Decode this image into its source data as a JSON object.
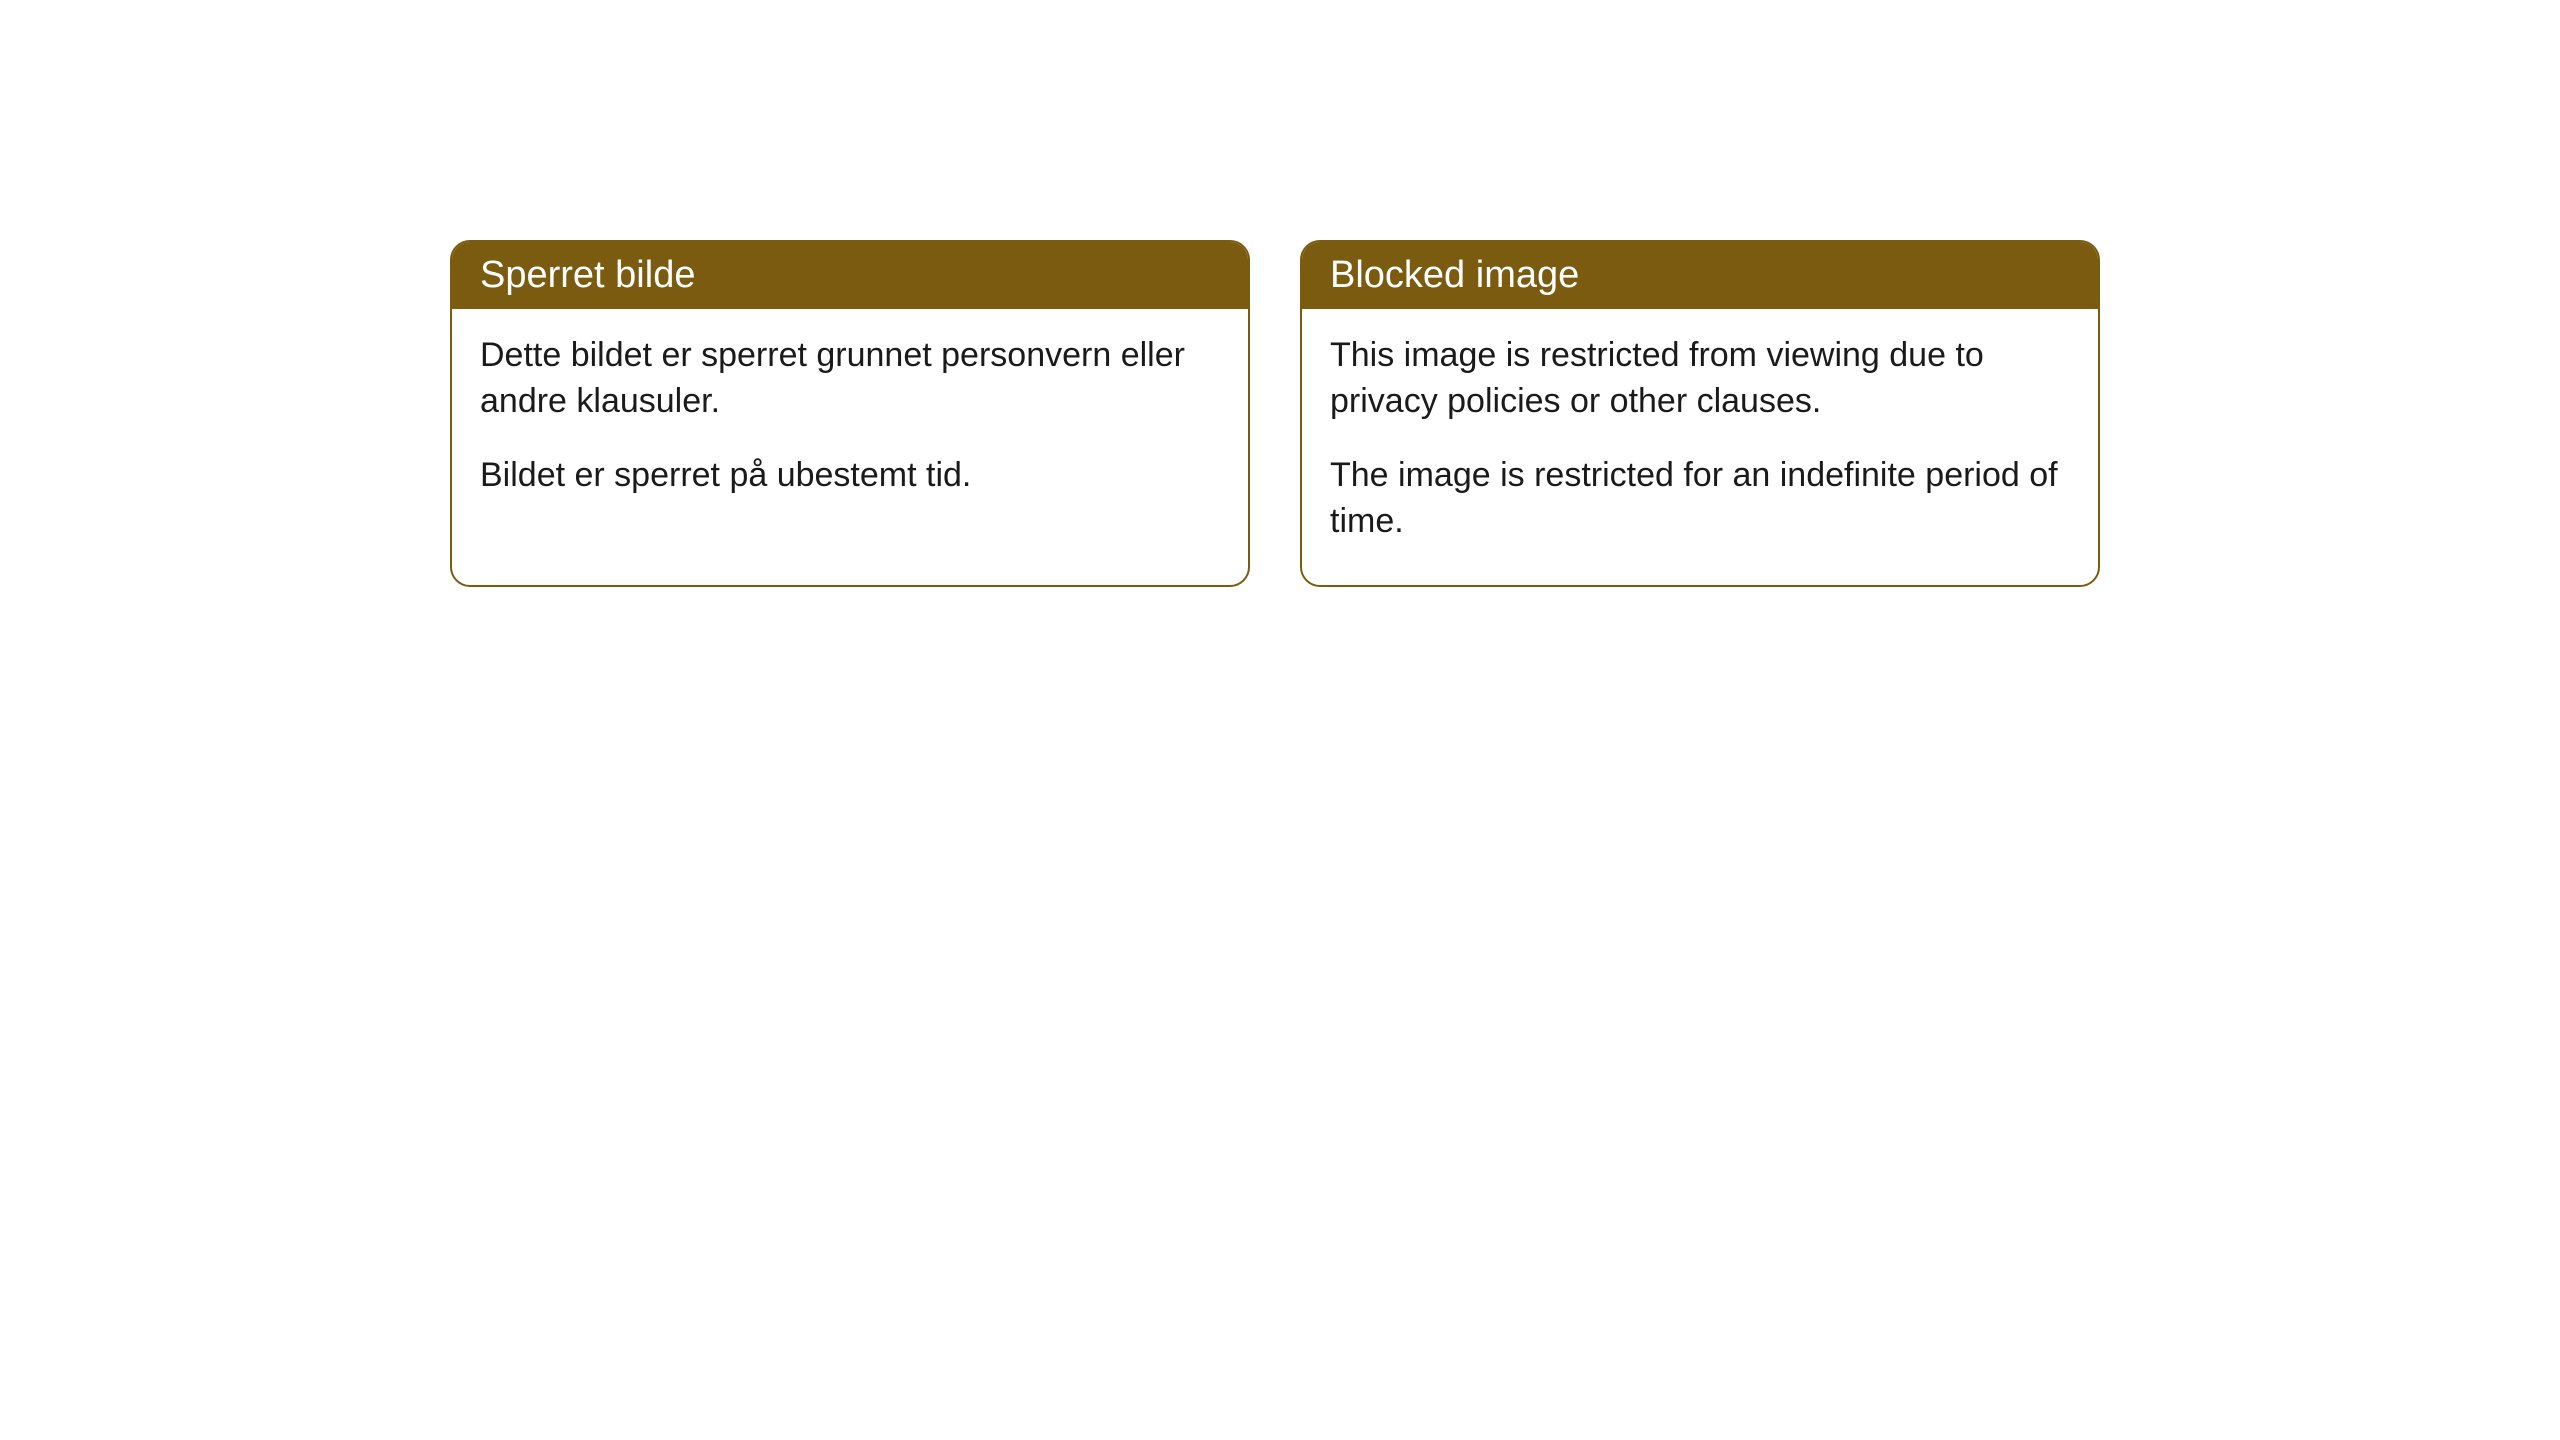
{
  "cards": [
    {
      "header": "Sperret bilde",
      "paragraph1": "Dette bildet er sperret grunnet personvern eller andre klausuler.",
      "paragraph2": "Bildet er sperret på ubestemt tid."
    },
    {
      "header": "Blocked image",
      "paragraph1": "This image is restricted from viewing due to privacy policies or other clauses.",
      "paragraph2": "The image is restricted for an indefinite period of time."
    }
  ],
  "styling": {
    "header_background": "#7a5b0f",
    "header_text_color": "#ffffff",
    "border_color": "#7a5b0f",
    "body_background": "#ffffff",
    "body_text_color": "#1a1a1a",
    "border_radius": 20,
    "header_fontsize": 38,
    "body_fontsize": 34
  }
}
